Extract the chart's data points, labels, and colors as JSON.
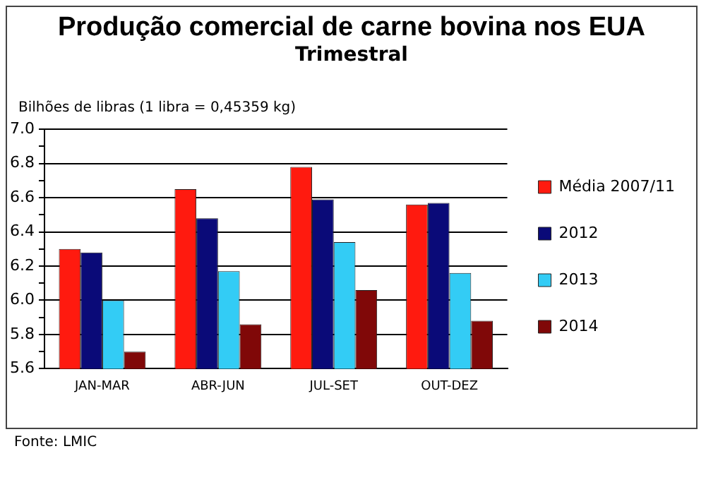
{
  "chart_data": {
    "type": "bar",
    "title": "Produção comercial de carne bovina nos EUA",
    "subtitle": "Trimestral",
    "ylabel": "Bilhões de libras (1 libra = 0,45359 kg)",
    "categories": [
      "JAN-MAR",
      "ABR-JUN",
      "JUL-SET",
      "OUT-DEZ"
    ],
    "series": [
      {
        "name": "Média 2007/11",
        "color": "#ff1a0f",
        "values": [
          6.3,
          6.65,
          6.78,
          6.56
        ]
      },
      {
        "name": "2012",
        "color": "#0a0a78",
        "values": [
          6.28,
          6.48,
          6.59,
          6.57
        ]
      },
      {
        "name": "2013",
        "color": "#33ccf5",
        "values": [
          6.0,
          6.17,
          6.34,
          6.16
        ]
      },
      {
        "name": "2014",
        "color": "#800808",
        "values": [
          5.7,
          5.86,
          6.06,
          5.88
        ]
      }
    ],
    "ylim": [
      5.6,
      7.0
    ],
    "yticks": [
      {
        "value": 5.6,
        "label": "5.6"
      },
      {
        "value": 5.7,
        "label": null
      },
      {
        "value": 5.8,
        "label": "5.8"
      },
      {
        "value": 5.9,
        "label": null
      },
      {
        "value": 6.0,
        "label": "6.0"
      },
      {
        "value": 6.1,
        "label": null
      },
      {
        "value": 6.2,
        "label": "6.2"
      },
      {
        "value": 6.3,
        "label": null
      },
      {
        "value": 6.4,
        "label": "6.4"
      },
      {
        "value": 6.5,
        "label": null
      },
      {
        "value": 6.6,
        "label": "6.6"
      },
      {
        "value": 6.7,
        "label": null
      },
      {
        "value": 6.8,
        "label": "6.8"
      },
      {
        "value": 6.9,
        "label": null
      },
      {
        "value": 7.0,
        "label": "7.0"
      }
    ],
    "grid": "y",
    "legend": "right",
    "annotations": [
      "Fonte: LMIC"
    ]
  }
}
